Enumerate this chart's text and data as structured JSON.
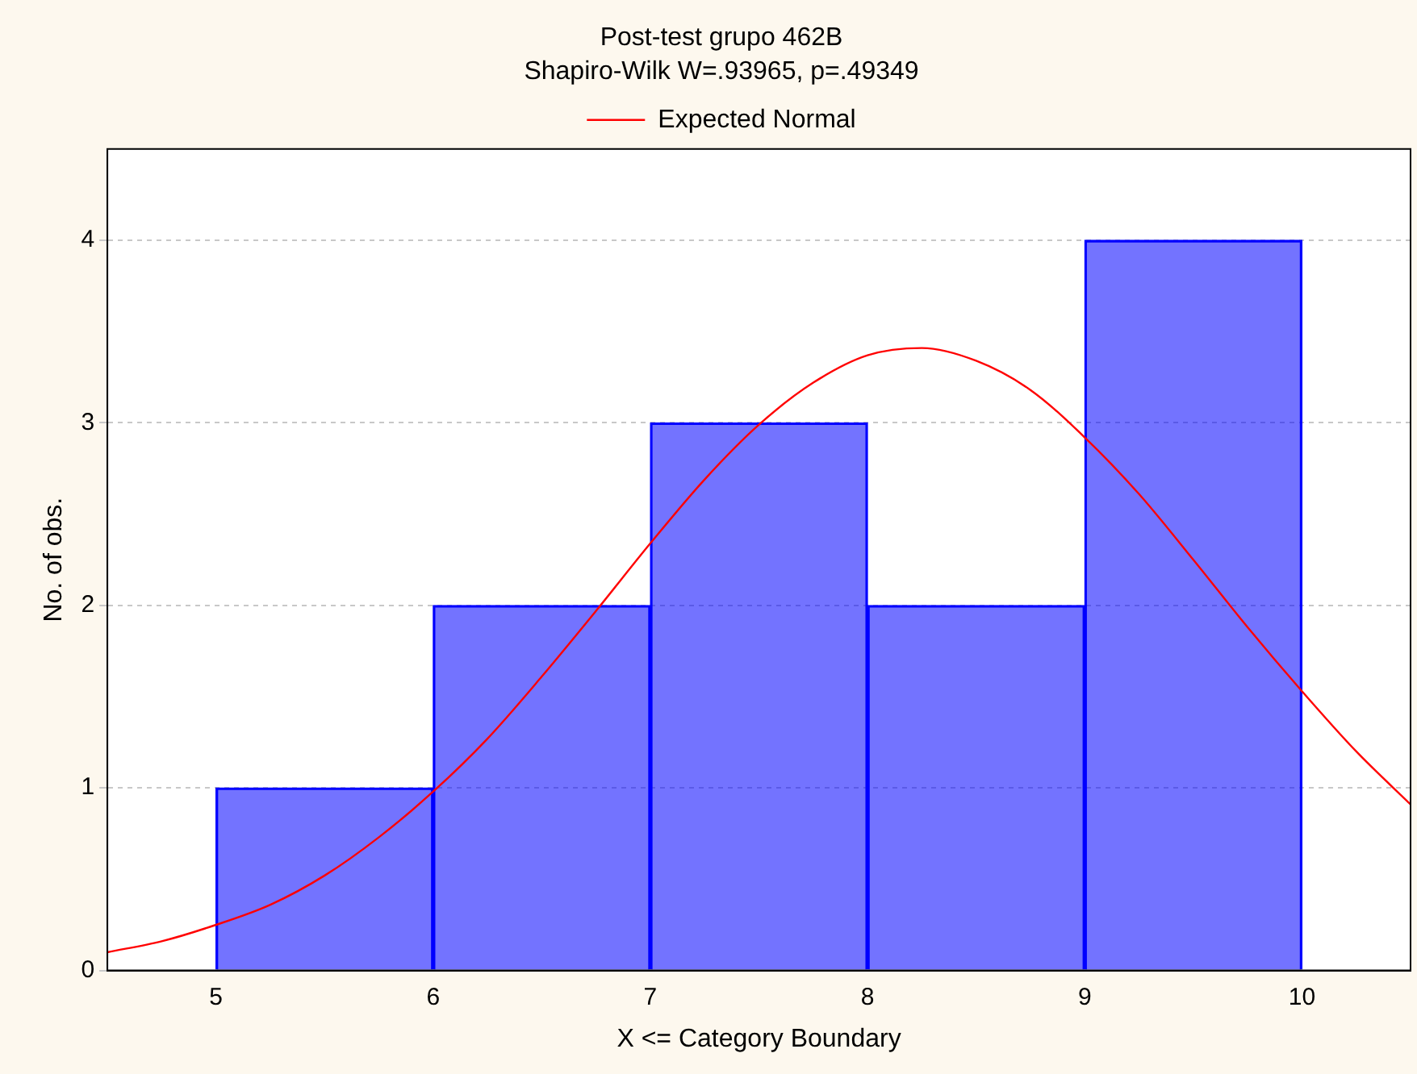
{
  "chart_data": {
    "type": "histogram",
    "title": "Post-test grupo 462B",
    "subtitle": "Shapiro-Wilk W=.93965, p=.49349",
    "xlabel": "X <= Category Boundary",
    "ylabel": "No. of obs.",
    "bins": [
      5,
      6,
      7,
      8,
      9,
      10
    ],
    "values": [
      1,
      2,
      3,
      2,
      4
    ],
    "color": "#0000ff",
    "series": [
      {
        "type": "line",
        "name": "Expected Normal",
        "color": "#ff0000",
        "x": [
          4.5,
          4.75,
          5,
          5.25,
          5.5,
          5.75,
          6,
          6.25,
          6.5,
          6.75,
          7,
          7.25,
          7.5,
          7.75,
          8,
          8.25,
          8.5,
          8.75,
          9,
          9.25,
          9.5,
          9.75,
          10,
          10.25,
          10.5
        ],
        "values": [
          0.1,
          0.16,
          0.25,
          0.36,
          0.52,
          0.73,
          0.98,
          1.27,
          1.61,
          1.97,
          2.34,
          2.69,
          2.99,
          3.22,
          3.37,
          3.41,
          3.34,
          3.18,
          2.92,
          2.61,
          2.25,
          1.88,
          1.53,
          1.2,
          0.91
        ]
      }
    ],
    "xlim": [
      4.5,
      10.5
    ],
    "xticks": [
      5,
      6,
      7,
      8,
      9,
      10
    ],
    "ylim": [
      0,
      4.5
    ],
    "yticks": [
      0,
      1,
      2,
      3,
      4
    ],
    "grid": "y",
    "legend": "top",
    "marker": "none"
  }
}
